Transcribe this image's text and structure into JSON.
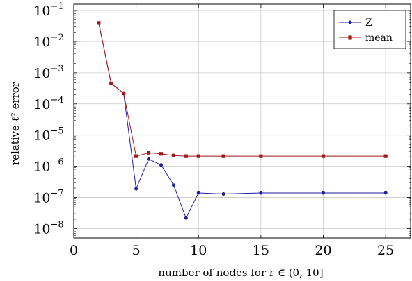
{
  "chart_data": {
    "type": "line",
    "xlabel": "number of nodes for r ∈ (0, 10]",
    "ylabel": "relative ℓ² error",
    "xlim": [
      0,
      27
    ],
    "ylim_log10": [
      -8.3,
      -0.8
    ],
    "y_scale": "log",
    "grid": true,
    "legend_placement": "top-right",
    "x_ticks": [
      0,
      5,
      10,
      15,
      20,
      25
    ],
    "y_ticks": [
      {
        "base": "10",
        "exp": "−1",
        "value": 0.1
      },
      {
        "base": "10",
        "exp": "−2",
        "value": 0.01
      },
      {
        "base": "10",
        "exp": "−3",
        "value": 0.001
      },
      {
        "base": "10",
        "exp": "−4",
        "value": 0.0001
      },
      {
        "base": "10",
        "exp": "−5",
        "value": 1e-05
      },
      {
        "base": "10",
        "exp": "−6",
        "value": 1e-06
      },
      {
        "base": "10",
        "exp": "−7",
        "value": 1e-07
      },
      {
        "base": "10",
        "exp": "−8",
        "value": 1e-08
      }
    ],
    "series": [
      {
        "name": "Z",
        "color": "#1f1fa0",
        "marker": "circle",
        "x": [
          2,
          3,
          4,
          5,
          6,
          7,
          8,
          9,
          10,
          12,
          15,
          20,
          25
        ],
        "y": [
          0.04,
          0.00045,
          0.00022,
          1.9e-07,
          1.7e-06,
          1.1e-06,
          2.5e-07,
          2.2e-08,
          1.4e-07,
          1.3e-07,
          1.4e-07,
          1.4e-07,
          1.4e-07
        ]
      },
      {
        "name": "mean",
        "color": "#a01818",
        "marker": "square",
        "x": [
          2,
          3,
          4,
          5,
          6,
          7,
          8,
          9,
          10,
          12,
          15,
          20,
          25
        ],
        "y": [
          0.04,
          0.00045,
          0.00022,
          2.1e-06,
          2.7e-06,
          2.5e-06,
          2.2e-06,
          2.1e-06,
          2.1e-06,
          2.1e-06,
          2.1e-06,
          2.1e-06,
          2.1e-06
        ]
      }
    ]
  }
}
